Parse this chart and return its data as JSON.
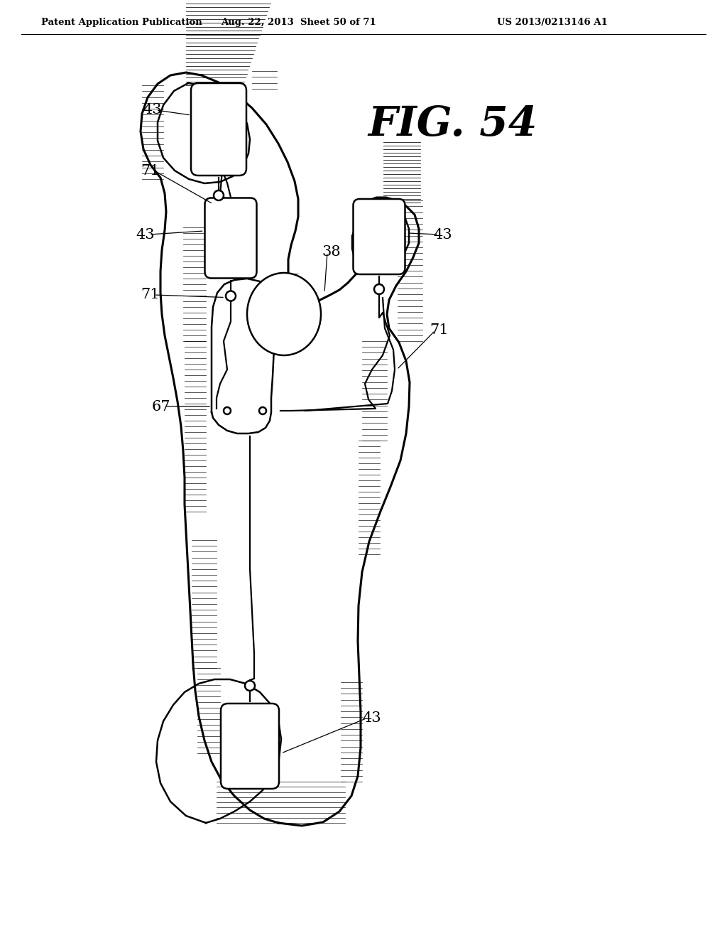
{
  "bg": "#ffffff",
  "lc": "#000000",
  "header_left": "Patent Application Publication",
  "header_mid": "Aug. 22, 2013  Sheet 50 of 71",
  "header_right": "US 2013/0213146 A1",
  "fig_label": "FIG. 54",
  "lw_outer": 2.2,
  "lw_inner": 1.8,
  "lw_wire": 1.6,
  "lw_hatch": 0.55,
  "label_fs": 15
}
